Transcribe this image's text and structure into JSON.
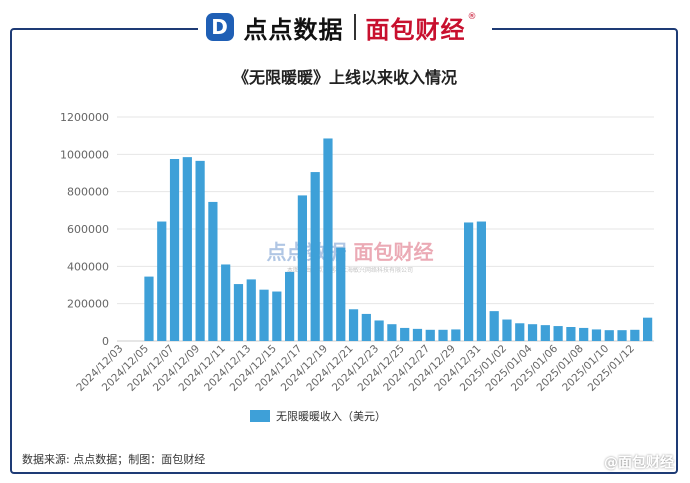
{
  "header": {
    "logo_left": "点点数据",
    "logo_right": "面包财经",
    "logo_mark": "D",
    "registered": "®"
  },
  "title": "《无限暖暖》上线以来收入情况",
  "legend_label": "无限暖暖收入（美元）",
  "source": "数据来源: 点点数据；制图：面包财经",
  "footer_brand": "@面包财经",
  "watermark": {
    "line1_left": "点点数据",
    "line1_right": "面包财经",
    "line2": "本图表由点点数据和上海敏兴网络科技有限公司"
  },
  "colors": {
    "bar": "#3ea0d8",
    "frame": "#1e3b75",
    "accent": "#c8102e",
    "brand_blue": "#1f5fb5"
  },
  "chart_data": {
    "type": "bar",
    "title": "《无限暖暖》上线以来收入情况",
    "xlabel": "",
    "ylabel": "",
    "ylim": [
      0,
      1200000
    ],
    "yticks": [
      0,
      200000,
      400000,
      600000,
      800000,
      1000000,
      1200000
    ],
    "ytick_labels": [
      "0",
      "200000",
      "400000",
      "600000",
      "800000",
      "1000000",
      "1200000"
    ],
    "grid": true,
    "legend_position": "bottom",
    "categories": [
      "2024/12/03",
      "2024/12/04",
      "2024/12/05",
      "2024/12/06",
      "2024/12/07",
      "2024/12/08",
      "2024/12/09",
      "2024/12/10",
      "2024/12/11",
      "2024/12/12",
      "2024/12/13",
      "2024/12/14",
      "2024/12/15",
      "2024/12/16",
      "2024/12/17",
      "2024/12/18",
      "2024/12/19",
      "2024/12/20",
      "2024/12/21",
      "2024/12/22",
      "2024/12/23",
      "2024/12/24",
      "2024/12/25",
      "2024/12/26",
      "2024/12/27",
      "2024/12/28",
      "2024/12/29",
      "2024/12/30",
      "2024/12/31",
      "2025/01/01",
      "2025/01/02",
      "2025/01/03",
      "2025/01/04",
      "2025/01/05",
      "2025/01/06",
      "2025/01/07",
      "2025/01/08",
      "2025/01/09",
      "2025/01/10",
      "2025/01/11",
      "2025/01/12",
      "2025/01/13"
    ],
    "tick_labels": [
      "2024/12/03",
      "2024/12/05",
      "2024/12/07",
      "2024/12/09",
      "2024/12/11",
      "2024/12/13",
      "2024/12/15",
      "2024/12/17",
      "2024/12/19",
      "2024/12/21",
      "2024/12/23",
      "2024/12/25",
      "2024/12/27",
      "2024/12/29",
      "2024/12/31",
      "2025/01/02",
      "2025/01/04",
      "2025/01/06",
      "2025/01/08",
      "2025/01/10",
      "2025/01/12"
    ],
    "series": [
      {
        "name": "无限暖暖收入（美元）",
        "values": [
          0,
          0,
          345000,
          640000,
          975000,
          985000,
          965000,
          745000,
          410000,
          305000,
          330000,
          275000,
          265000,
          370000,
          780000,
          905000,
          1085000,
          500000,
          170000,
          145000,
          110000,
          90000,
          70000,
          65000,
          60000,
          60000,
          62000,
          635000,
          640000,
          160000,
          115000,
          95000,
          90000,
          85000,
          80000,
          75000,
          70000,
          62000,
          58000,
          58000,
          60000,
          125000
        ]
      }
    ]
  }
}
